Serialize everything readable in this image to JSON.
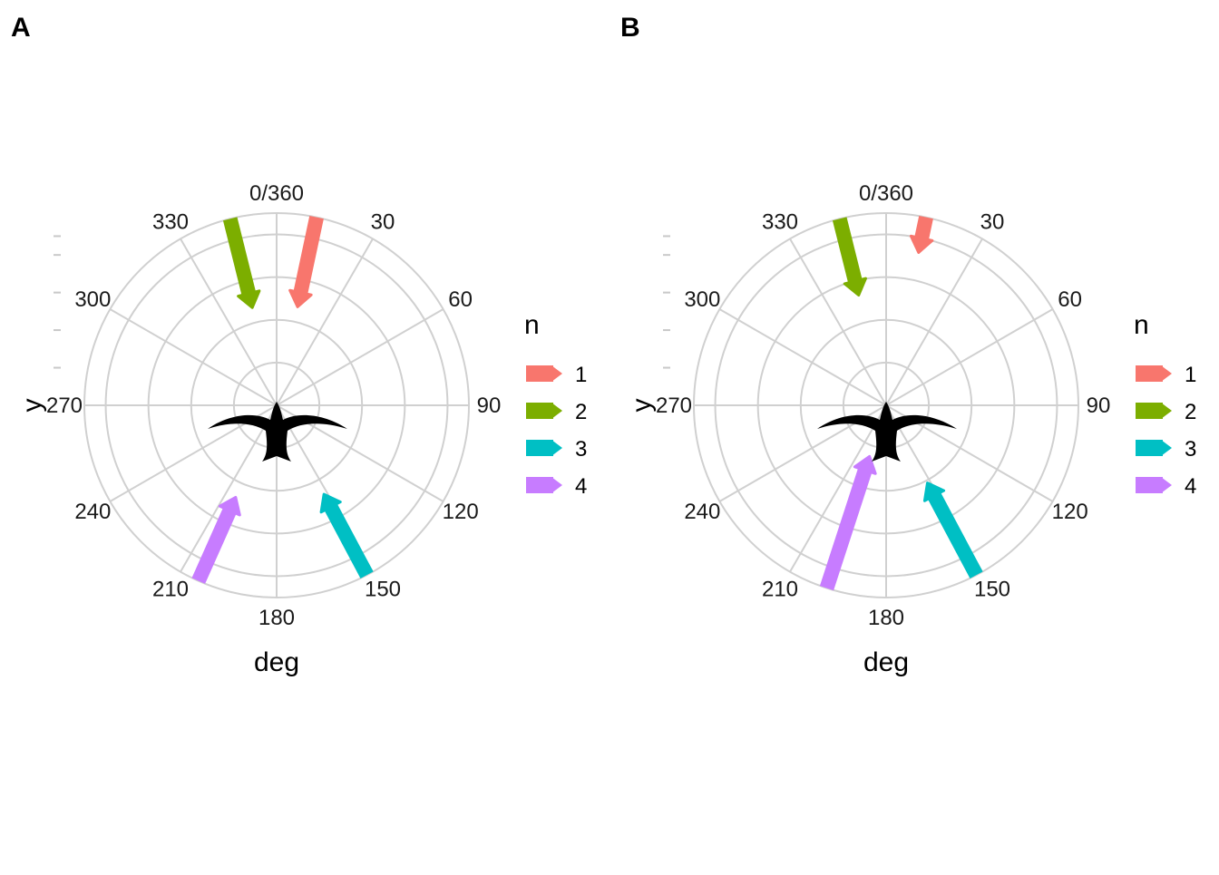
{
  "colors": {
    "n1": "#F8766D",
    "n2": "#7CAE00",
    "n3": "#00BFC4",
    "n4": "#C77CFF",
    "grid": "#D0D0D0",
    "bird": "#000000"
  },
  "bird_icon": "bird-silhouette-icon",
  "chart_data": [
    {
      "tag": "A",
      "type": "polar-arrows",
      "xlabel": "deg",
      "ylabel": "y",
      "theta_ticks": [
        "0/360",
        "30",
        "60",
        "90",
        "120",
        "150",
        "180",
        "210",
        "240",
        "270",
        "300",
        "330"
      ],
      "theta_range": [
        0,
        360
      ],
      "legend": {
        "title": "n",
        "position": "right",
        "entries": [
          "1",
          "2",
          "3",
          "4"
        ]
      },
      "grid": true,
      "arrows": [
        {
          "n": "1",
          "deg": 12,
          "r_start": 4.5,
          "r_end": 2.4
        },
        {
          "n": "2",
          "deg": 346,
          "r_start": 4.5,
          "r_end": 2.4
        },
        {
          "n": "3",
          "deg": 152,
          "r_start": 4.5,
          "r_end": 2.4
        },
        {
          "n": "4",
          "deg": 204,
          "r_start": 4.5,
          "r_end": 2.4
        }
      ]
    },
    {
      "tag": "B",
      "type": "polar-arrows",
      "xlabel": "deg",
      "ylabel": "y",
      "theta_ticks": [
        "0/360",
        "30",
        "60",
        "90",
        "120",
        "150",
        "180",
        "210",
        "240",
        "270",
        "300",
        "330"
      ],
      "theta_range": [
        0,
        360
      ],
      "legend": {
        "title": "n",
        "position": "right",
        "entries": [
          "1",
          "2",
          "3",
          "4"
        ]
      },
      "grid": true,
      "arrows": [
        {
          "n": "1",
          "deg": 12,
          "r_start": 4.5,
          "r_end": 3.7
        },
        {
          "n": "2",
          "deg": 346,
          "r_start": 4.5,
          "r_end": 2.7
        },
        {
          "n": "3",
          "deg": 152,
          "r_start": 4.5,
          "r_end": 2.1
        },
        {
          "n": "4",
          "deg": 198,
          "r_start": 4.5,
          "r_end": 1.3
        }
      ]
    }
  ]
}
